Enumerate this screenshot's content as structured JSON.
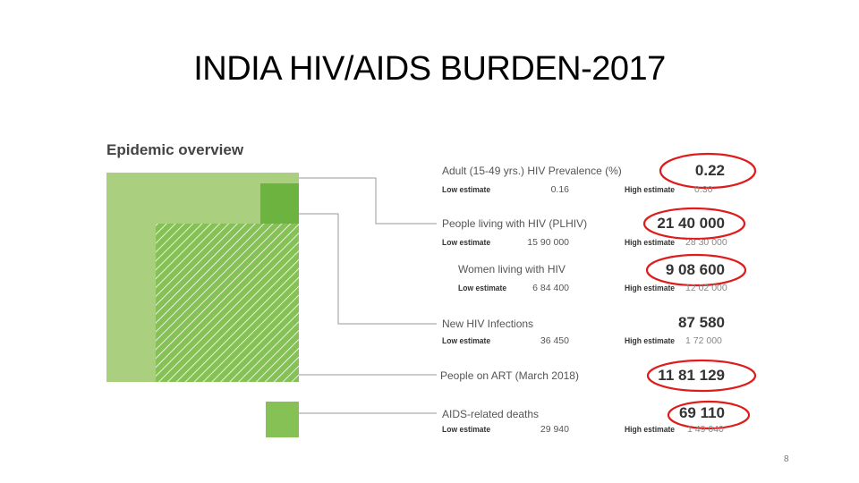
{
  "slide": {
    "title": "INDIA HIV/AIDS BURDEN-2017",
    "page_number": "8"
  },
  "overview": {
    "heading": "Epidemic overview",
    "colors": {
      "light_green": "#a9cf7f",
      "mid_green": "#86c155",
      "dark_green": "#6db33f",
      "connector": "#9a9a9a",
      "highlight_circle": "#e01b1b"
    },
    "rows": [
      {
        "label": "Adult (15-49 yrs.) HIV Prevalence (%)",
        "value": "0.22",
        "low_label": "Low estimate",
        "low_value": "0.16",
        "high_label": "High estimate",
        "high_value": "0.30"
      },
      {
        "label": "People living with HIV (PLHIV)",
        "value": "21 40 000",
        "low_label": "Low estimate",
        "low_value": "15 90 000",
        "high_label": "High estimate",
        "high_value": "28 30 000"
      },
      {
        "label": "Women living with HIV",
        "value": "9 08 600",
        "low_label": "Low estimate",
        "low_value": "6 84 400",
        "high_label": "High estimate",
        "high_value": "12 02 000"
      },
      {
        "label": "New HIV Infections",
        "value": "87 580",
        "low_label": "Low estimate",
        "low_value": "36 450",
        "high_label": "High estimate",
        "high_value": "1 72 000"
      },
      {
        "label": "People on ART (March 2018)",
        "value": "11 81 129"
      },
      {
        "label": "AIDS-related deaths",
        "value": "69 110",
        "low_label": "Low estimate",
        "low_value": "29 940",
        "high_label": "High estimate",
        "high_value": "1 49 040"
      }
    ]
  }
}
